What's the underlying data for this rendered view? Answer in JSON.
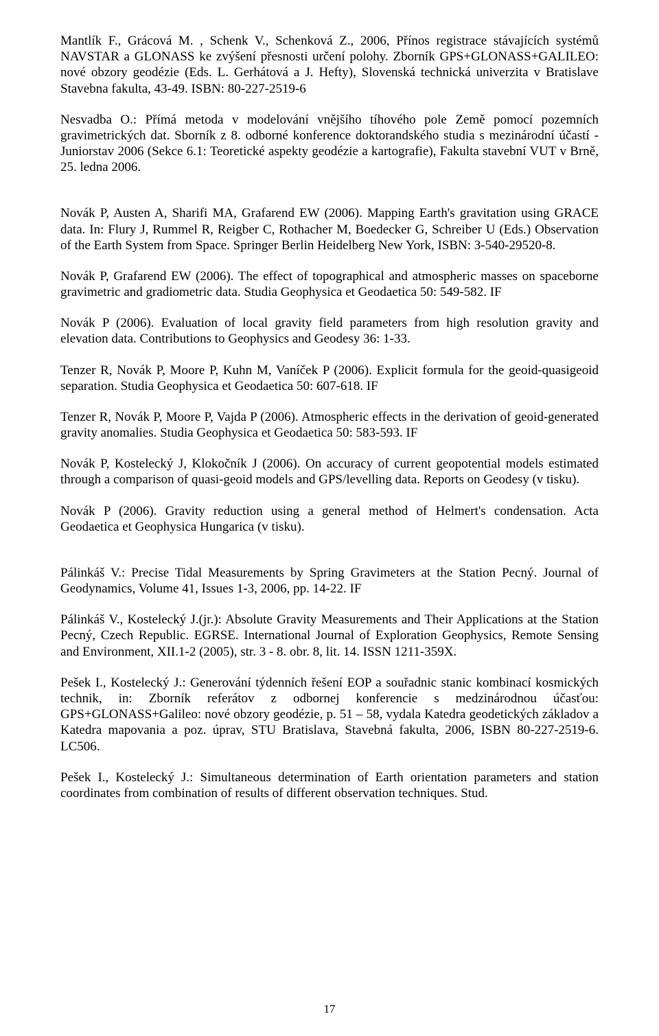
{
  "paragraphs": [
    "Mantlík F., Grácová M. , Schenk V., Schenková Z., 2006, Přínos registrace stávajících systémů NAVSTAR a GLONASS ke zvýšení přesnosti určení polohy. Zborník GPS+GLONASS+GALILEO: nové obzory geodézie (Eds. L. Gerhátová a J. Hefty), Slovenská technická univerzita v Bratislave Stavebna fakulta, 43-49. ISBN: 80-227-2519-6",
    "Nesvadba O.: Přímá metoda v modelování vnějšího tíhového pole Země pomocí pozemních gravimetrických dat. Sborník z 8. odborné konference doktorandského studia s mezinárodní účastí - Juniorstav 2006 (Sekce 6.1: Teoretické aspekty geodézie a kartografie), Fakulta stavební VUT v Brně, 25. ledna 2006.",
    "Novák P, Austen A, Sharifi MA, Grafarend EW (2006). Mapping Earth's gravitation using GRACE data. In: Flury J, Rummel R, Reigber C, Rothacher M, Boedecker G, Schreiber U (Eds.) Observation of the Earth System from Space. Springer Berlin Heidelberg New York, ISBN: 3-540-29520-8.",
    "Novák P, Grafarend EW (2006). The effect of topographical and atmospheric masses on spaceborne gravimetric and gradiometric data. Studia Geophysica et Geodaetica 50: 549-582. IF",
    "Novák P (2006). Evaluation of local gravity field parameters from high resolution gravity and elevation data. Contributions to Geophysics and Geodesy 36: 1-33.",
    "Tenzer R, Novák P, Moore P, Kuhn M, Vaníček P (2006). Explicit formula for the geoid-quasigeoid separation. Studia Geophysica et Geodaetica 50: 607-618. IF",
    "Tenzer R, Novák P, Moore P, Vajda P (2006). Atmospheric effects in the derivation of geoid-generated gravity anomalies. Studia Geophysica et Geodaetica 50: 583-593. IF",
    "Novák P, Kostelecký J, Klokočník J (2006). On accuracy of current geopotential models estimated through a comparison of quasi-geoid models and GPS/levelling data. Reports on Geodesy (v tisku).",
    "Novák P (2006). Gravity reduction using a general method of Helmert's condensation. Acta Geodaetica et Geophysica Hungarica (v tisku).",
    "Pálinkáš V.: Precise Tidal Measurements by Spring Gravimeters at the Station Pecný. Journal of Geodynamics, Volume 41, Issues 1-3, 2006, pp. 14-22. IF",
    "Pálinkáš V., Kostelecký J.(jr.): Absolute Gravity Measurements and Their Applications at the Station Pecný, Czech Republic. EGRSE. International Journal of Exploration Geophysics, Remote Sensing and Environment, XII.1-2 (2005), str. 3 - 8. obr. 8, lit. 14. ISSN 1211-359X.",
    "Pešek I., Kostelecký J.: Generování týdenních řešení EOP a souřadnic stanic kombinací kosmických technik, in: Zborník referátov z odbornej konferencie s medzinárodnou účasťou: GPS+GLONASS+Galileo: nové obzory geodézie, p. 51 – 58, vydala Katedra geodetických základov a Katedra mapovania a poz. úprav, STU Bratislava, Stavebná fakulta, 2006, ISBN 80-227-2519-6. LC506.",
    "Pešek I., Kostelecký J.: Simultaneous determination of Earth orientation parameters and station coordinates from combination of results of different observation techniques. Stud."
  ],
  "gap_after": [
    false,
    true,
    false,
    false,
    false,
    false,
    false,
    false,
    true,
    false,
    false,
    false,
    false
  ],
  "page_number": "17",
  "text_color": "#000000",
  "background_color": "#ffffff"
}
